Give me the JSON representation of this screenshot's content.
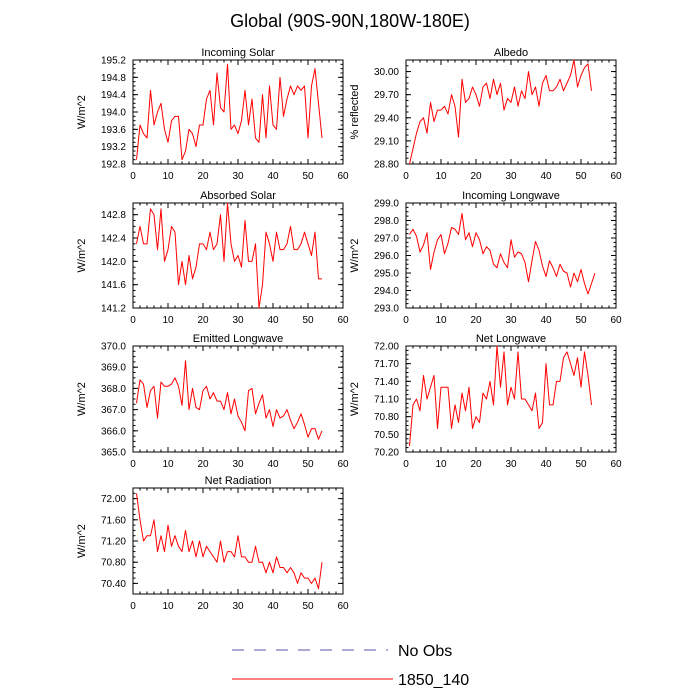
{
  "chart_data": {
    "type": "line",
    "title": "Global (90S-90N,180W-180E)",
    "colors": {
      "model_line": "#ff0000",
      "obs_line": "#5555aa",
      "axis": "#000000"
    },
    "legend": {
      "position": "bottom",
      "entries": [
        {
          "name": "No Obs",
          "style": "dashed",
          "color": "#5555aa"
        },
        {
          "name": "1850_140",
          "style": "solid",
          "color": "#ff0000"
        }
      ]
    },
    "panels": [
      {
        "title": "Incoming Solar",
        "ylabel": "W/m^2",
        "xlim": [
          0,
          60
        ],
        "ylim": [
          192.8,
          195.2
        ],
        "xticks": [
          0,
          10,
          20,
          30,
          40,
          50,
          60
        ],
        "yticks": [
          "192.8",
          "193.2",
          "193.6",
          "194.0",
          "194.4",
          "194.8",
          "195.2"
        ],
        "series": [
          {
            "name": "1850_140",
            "x_start": 1,
            "values": [
              192.9,
              193.7,
              193.5,
              193.4,
              194.5,
              193.7,
              194.0,
              194.2,
              193.6,
              193.3,
              193.8,
              193.9,
              193.9,
              192.9,
              193.1,
              193.6,
              193.5,
              193.2,
              193.7,
              193.7,
              194.3,
              194.5,
              193.7,
              194.9,
              194.1,
              194.0,
              195.1,
              193.6,
              193.7,
              193.5,
              193.8,
              194.5,
              193.7,
              194.3,
              193.4,
              193.3,
              194.4,
              193.4,
              194.6,
              193.7,
              193.6,
              194.8,
              193.9,
              194.3,
              194.6,
              194.4,
              194.6,
              194.5,
              194.6,
              193.4,
              194.6,
              195.0,
              194.2,
              193.4
            ]
          }
        ]
      },
      {
        "title": "Albedo",
        "ylabel": "% reflected",
        "xlim": [
          0,
          60
        ],
        "ylim": [
          28.8,
          30.15
        ],
        "xticks": [
          0,
          10,
          20,
          30,
          40,
          50,
          60
        ],
        "yticks": [
          "28.80",
          "29.10",
          "29.40",
          "29.70",
          "30.00"
        ],
        "series": [
          {
            "name": "1850_140",
            "x_start": 1,
            "values": [
              28.8,
              29.0,
              29.2,
              29.35,
              29.4,
              29.2,
              29.6,
              29.35,
              29.5,
              29.5,
              29.55,
              29.45,
              29.7,
              29.55,
              29.15,
              29.9,
              29.6,
              29.65,
              29.8,
              29.7,
              29.55,
              29.8,
              29.85,
              29.65,
              29.9,
              29.7,
              29.85,
              29.5,
              29.65,
              29.6,
              29.8,
              29.55,
              29.75,
              29.65,
              30.0,
              29.7,
              29.8,
              29.55,
              29.85,
              29.95,
              29.75,
              29.75,
              29.8,
              29.9,
              29.75,
              29.85,
              29.95,
              30.15,
              29.8,
              29.95,
              30.05,
              30.1,
              29.75
            ]
          }
        ]
      },
      {
        "title": "Absorbed Solar",
        "ylabel": "W/m^2",
        "xlim": [
          0,
          60
        ],
        "ylim": [
          141.2,
          143.0
        ],
        "xticks": [
          0,
          10,
          20,
          30,
          40,
          50,
          60
        ],
        "yticks": [
          "141.2",
          "141.6",
          "142.0",
          "142.4",
          "142.8"
        ],
        "series": [
          {
            "name": "1850_140",
            "x_start": 1,
            "values": [
              142.3,
              142.6,
              142.3,
              142.3,
              142.9,
              142.8,
              142.2,
              142.9,
              142.0,
              142.2,
              142.6,
              142.5,
              141.6,
              142.0,
              141.6,
              142.1,
              141.7,
              141.9,
              142.3,
              142.3,
              142.2,
              142.5,
              142.2,
              142.3,
              142.8,
              142.0,
              143.0,
              142.3,
              142.0,
              142.1,
              141.9,
              142.7,
              142.0,
              142.0,
              142.3,
              141.2,
              141.6,
              142.5,
              142.3,
              142.0,
              142.5,
              142.2,
              142.2,
              142.3,
              142.6,
              142.2,
              142.2,
              142.3,
              142.5,
              142.3,
              142.1,
              142.5,
              141.7,
              141.7
            ]
          }
        ]
      },
      {
        "title": "Incoming Longwave",
        "ylabel": "W/m^2",
        "xlim": [
          0,
          60
        ],
        "ylim": [
          293.0,
          299.0
        ],
        "xticks": [
          0,
          10,
          20,
          30,
          40,
          50,
          60
        ],
        "yticks": [
          "293.0",
          "294.0",
          "295.0",
          "296.0",
          "297.0",
          "298.0",
          "299.0"
        ],
        "series": [
          {
            "name": "1850_140",
            "x_start": 1,
            "values": [
              297.2,
              297.5,
              297.1,
              296.2,
              296.6,
              297.3,
              295.2,
              296.2,
              296.9,
              297.2,
              296.1,
              296.7,
              297.6,
              297.5,
              297.2,
              298.4,
              296.9,
              297.3,
              296.5,
              297.3,
              296.9,
              296.1,
              296.5,
              296.3,
              295.5,
              295.3,
              296.1,
              295.6,
              295.3,
              296.9,
              295.9,
              296.2,
              296.1,
              295.6,
              294.5,
              295.7,
              296.8,
              296.3,
              295.4,
              294.8,
              295.7,
              295.3,
              294.8,
              295.5,
              295.1,
              295.0,
              294.2,
              295.0,
              294.5,
              295.2,
              294.4,
              293.8,
              294.4,
              295.0
            ]
          }
        ]
      },
      {
        "title": "Emitted Longwave",
        "ylabel": "W/m^2",
        "xlim": [
          0,
          60
        ],
        "ylim": [
          365.0,
          370.0
        ],
        "xticks": [
          0,
          10,
          20,
          30,
          40,
          50,
          60
        ],
        "yticks": [
          "365.0",
          "366.0",
          "367.0",
          "368.0",
          "369.0",
          "370.0"
        ],
        "series": [
          {
            "name": "1850_140",
            "x_start": 1,
            "values": [
              367.3,
              368.4,
              368.2,
              367.1,
              367.9,
              368.1,
              366.6,
              368.3,
              368.1,
              368.1,
              368.2,
              368.5,
              368.1,
              367.2,
              369.3,
              367.0,
              368.0,
              367.1,
              367.0,
              367.9,
              368.1,
              367.5,
              367.8,
              367.4,
              367.4,
              367.0,
              367.8,
              366.8,
              367.5,
              366.7,
              366.4,
              366.0,
              367.9,
              368.0,
              366.8,
              367.3,
              367.7,
              366.6,
              367.0,
              366.2,
              367.0,
              366.6,
              366.7,
              367.0,
              366.5,
              366.1,
              366.4,
              366.8,
              366.3,
              365.7,
              366.1,
              366.1,
              365.6,
              366.0
            ]
          }
        ]
      },
      {
        "title": "Net Longwave",
        "ylabel": "W/m^2",
        "xlim": [
          0,
          60
        ],
        "ylim": [
          70.2,
          72.0
        ],
        "xticks": [
          0,
          10,
          20,
          30,
          40,
          50,
          60
        ],
        "yticks": [
          "70.20",
          "70.50",
          "70.80",
          "71.10",
          "71.40",
          "71.70",
          "72.00"
        ],
        "series": [
          {
            "name": "1850_140",
            "x_start": 1,
            "values": [
              70.3,
              71.0,
              71.1,
              70.9,
              71.5,
              71.1,
              71.3,
              71.5,
              70.6,
              71.3,
              71.3,
              71.3,
              70.6,
              71.0,
              70.7,
              71.2,
              70.9,
              71.3,
              70.6,
              70.8,
              70.7,
              71.2,
              71.1,
              71.4,
              71.0,
              72.0,
              71.3,
              71.9,
              71.0,
              71.3,
              71.1,
              71.9,
              71.1,
              71.1,
              71.0,
              70.9,
              71.2,
              70.6,
              70.7,
              71.7,
              71.0,
              71.0,
              71.4,
              71.4,
              71.8,
              71.9,
              71.7,
              71.5,
              71.8,
              71.3,
              71.9,
              71.5,
              71.0
            ]
          }
        ]
      },
      {
        "title": "Net Radiation",
        "ylabel": "W/m^2",
        "xlim": [
          0,
          60
        ],
        "ylim": [
          70.2,
          72.2
        ],
        "xticks": [
          0,
          10,
          20,
          30,
          40,
          50,
          60
        ],
        "yticks": [
          "70.40",
          "70.80",
          "71.20",
          "71.60",
          "72.00"
        ],
        "series": [
          {
            "name": "1850_140",
            "x_start": 1,
            "values": [
              72.1,
              71.6,
              71.2,
              71.3,
              71.3,
              71.6,
              71.0,
              71.3,
              71.0,
              71.5,
              71.1,
              71.3,
              71.1,
              71.0,
              71.4,
              71.0,
              71.2,
              70.9,
              71.2,
              70.9,
              71.1,
              71.0,
              70.9,
              70.8,
              71.2,
              70.8,
              71.0,
              71.0,
              70.9,
              71.3,
              70.9,
              70.9,
              70.8,
              70.8,
              71.1,
              70.8,
              70.8,
              70.6,
              70.8,
              70.6,
              70.9,
              70.7,
              70.7,
              70.6,
              70.7,
              70.6,
              70.4,
              70.6,
              70.5,
              70.5,
              70.4,
              70.5,
              70.3,
              70.8
            ]
          }
        ]
      }
    ]
  }
}
